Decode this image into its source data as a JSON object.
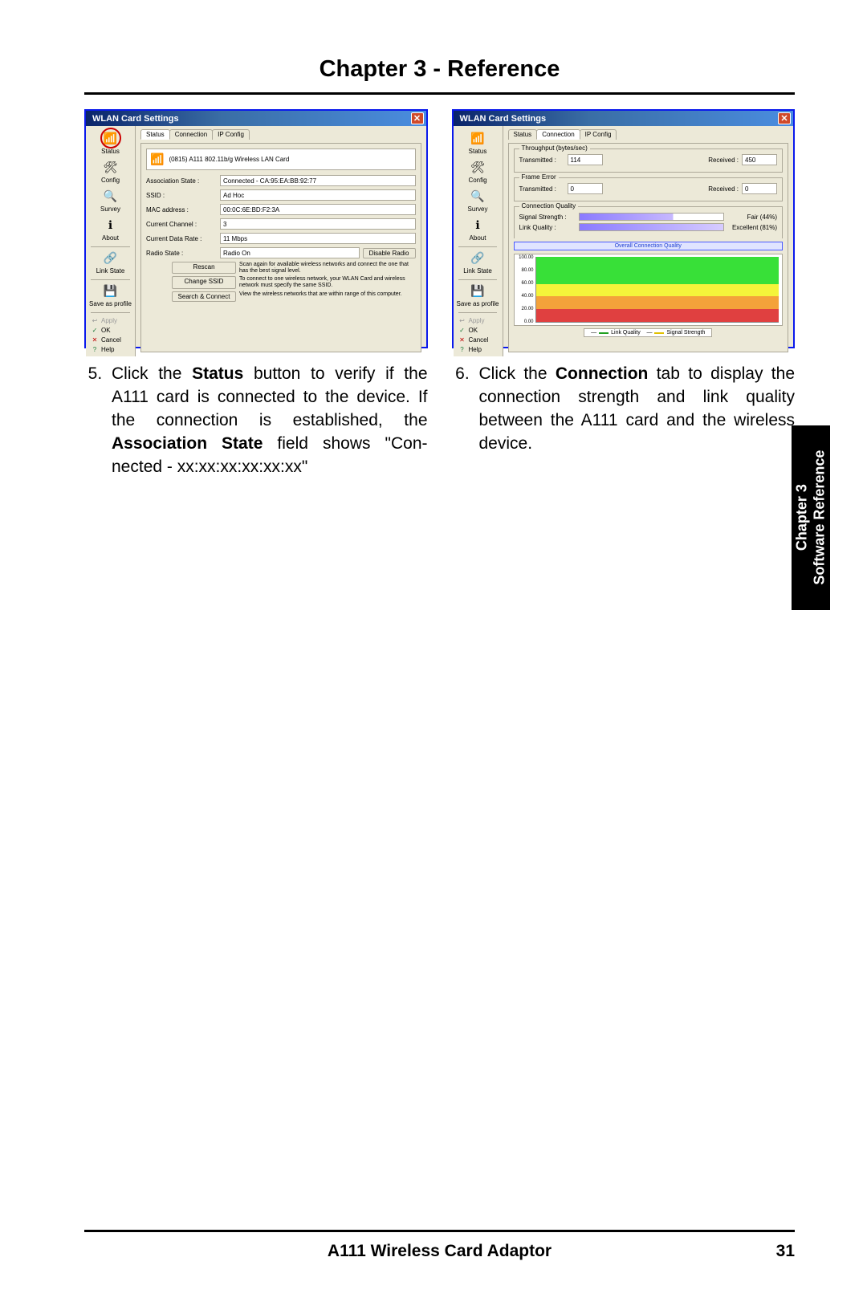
{
  "chapter_title": "Chapter 3 - Reference",
  "side_tab": {
    "line1": "Chapter 3",
    "line2": "Software Reference"
  },
  "footer": {
    "title": "A111 Wireless Card Adaptor",
    "page": "31"
  },
  "colors": {
    "frame_border": "#0a19ec",
    "dialog_bg": "#ece9d8",
    "titlebar_grad_a": "#0a246a",
    "titlebar_grad_b": "#4a8de0",
    "close_btn": "#d04a2a",
    "bar_grad_a": "#8a7aff",
    "bar_grad_b": "#d7ccff",
    "chart_green": "#38e038",
    "chart_yellow": "#f4f43a",
    "chart_orange": "#f4a23a",
    "chart_red": "#e04040",
    "legend_link": "#20a020",
    "legend_signal": "#e0c000"
  },
  "win1": {
    "title": "WLAN Card Settings",
    "close": "✕",
    "sidebar": {
      "items": [
        {
          "icon": "📶",
          "label": "Status"
        },
        {
          "icon": "🛠",
          "label": "Config"
        },
        {
          "icon": "🔍",
          "label": "Survey"
        },
        {
          "icon": "ℹ",
          "label": "About"
        },
        {
          "icon": "🔗",
          "label": "Link State"
        },
        {
          "icon": "💾",
          "label": "Save as profile"
        }
      ],
      "cmds": [
        {
          "icon": "↩",
          "label": "Apply",
          "grey": true
        },
        {
          "icon": "✓",
          "label": "OK",
          "color": "#1a7a3a"
        },
        {
          "icon": "✕",
          "label": "Cancel",
          "color": "#c00000"
        },
        {
          "icon": "?",
          "label": "Help",
          "color": "#1a7a3a"
        }
      ]
    },
    "tabs": [
      "Status",
      "Connection",
      "IP Config"
    ],
    "active_tab": 0,
    "device": "(0815) A111 802.11b/g Wireless LAN Card",
    "fields": [
      {
        "label": "Association State :",
        "val": "Connected - CA:95:EA:BB:92:77"
      },
      {
        "label": "SSID :",
        "val": "Ad Hoc"
      },
      {
        "label": "MAC address :",
        "val": "00:0C:6E:BD:F2:3A"
      },
      {
        "label": "Current Channel :",
        "val": "3"
      },
      {
        "label": "Current Data Rate :",
        "val": "11 Mbps"
      }
    ],
    "radio": {
      "label": "Radio State :",
      "val": "Radio On",
      "btn": "Disable Radio"
    },
    "actions": [
      {
        "btn": "Rescan",
        "desc": "Scan again for available wireless networks and connect the one that has the best signal level."
      },
      {
        "btn": "Change SSID",
        "desc": "To connect to one wireless network, your WLAN Card and wireless network must specify the same SSID."
      },
      {
        "btn": "Search & Connect",
        "desc": "View the wireless networks that are within range of this computer."
      }
    ]
  },
  "win2": {
    "title": "WLAN Card Settings",
    "close": "✕",
    "sidebar": {
      "items": [
        {
          "icon": "📶",
          "label": "Status"
        },
        {
          "icon": "🛠",
          "label": "Config"
        },
        {
          "icon": "🔍",
          "label": "Survey"
        },
        {
          "icon": "ℹ",
          "label": "About"
        },
        {
          "icon": "🔗",
          "label": "Link State"
        },
        {
          "icon": "💾",
          "label": "Save as profile"
        }
      ],
      "cmds": [
        {
          "icon": "↩",
          "label": "Apply",
          "grey": true
        },
        {
          "icon": "✓",
          "label": "OK",
          "color": "#1a7a3a"
        },
        {
          "icon": "✕",
          "label": "Cancel",
          "color": "#c00000"
        },
        {
          "icon": "?",
          "label": "Help",
          "color": "#1a7a3a"
        }
      ]
    },
    "tabs": [
      "Status",
      "Connection",
      "IP Config"
    ],
    "active_tab": 1,
    "throughput": {
      "legend": "Throughput (bytes/sec)",
      "tx_label": "Transmitted :",
      "tx_val": "114",
      "rx_label": "Received :",
      "rx_val": "450"
    },
    "frame_error": {
      "legend": "Frame Error",
      "tx_label": "Transmitted :",
      "tx_val": "0",
      "rx_label": "Received :",
      "rx_val": "0"
    },
    "quality": {
      "legend": "Connection Quality",
      "signal_label": "Signal Strength :",
      "signal_val": "Fair (44%)",
      "signal_pct": 44,
      "link_label": "Link Quality :",
      "link_val": "Excellent (81%)",
      "link_pct": 81,
      "overall_btn": "Overall Connection Quality"
    },
    "chart": {
      "ylabels": [
        "100.00",
        "80.00",
        "60.00",
        "40.00",
        "20.00",
        "0.00"
      ],
      "bands": [
        {
          "from": 80,
          "to": 100,
          "color": "#38e038"
        },
        {
          "from": 58,
          "to": 80,
          "color": "#38e038"
        },
        {
          "from": 40,
          "to": 58,
          "color": "#f4f43a"
        },
        {
          "from": 20,
          "to": 40,
          "color": "#f4a23a"
        },
        {
          "from": 0,
          "to": 20,
          "color": "#e04040"
        }
      ],
      "legend": [
        {
          "label": "Link Quality",
          "color": "#20a020"
        },
        {
          "label": "Signal Strength",
          "color": "#e0c000"
        }
      ]
    }
  },
  "steps": {
    "five": {
      "num": "5",
      "pre": "Click the ",
      "b1": "Status",
      "mid1": " button to verify if the A111 card is connected to the device. If the connection is established, the ",
      "b2": "Associa­tion State",
      "post": " field shows \"Con­nected - xx:xx:xx:xx:xx:xx\""
    },
    "six": {
      "num": "6",
      "pre": "Click the ",
      "b1": "Connection",
      "post": " tab to dis­play the connection strength and link quality between the A111 card and the wireless device."
    }
  }
}
